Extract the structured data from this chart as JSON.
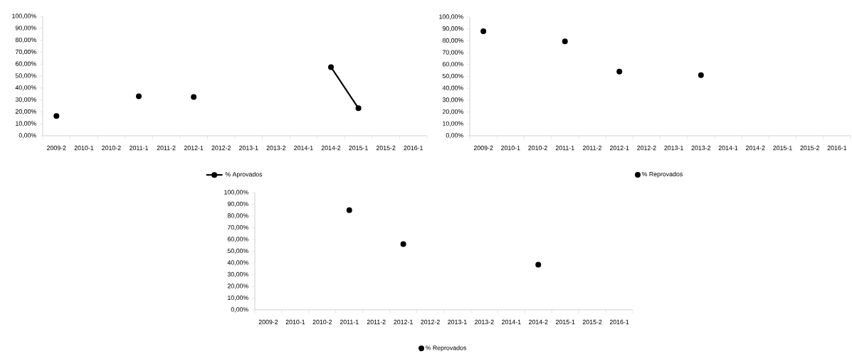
{
  "chart_data": [
    {
      "type": "line",
      "categories": [
        "2009-2",
        "2010-1",
        "2010-2",
        "2011-1",
        "2011-2",
        "2012-1",
        "2012-2",
        "2013-1",
        "2013-2",
        "2014-1",
        "2014-2",
        "2015-1",
        "2015-2",
        "2016-1"
      ],
      "series": [
        {
          "name": "% Aprovados",
          "color": "#000000",
          "values": [
            16.5,
            null,
            null,
            33,
            null,
            32.5,
            null,
            null,
            null,
            null,
            57.5,
            23,
            null,
            null
          ]
        }
      ],
      "ylim": [
        0,
        100
      ],
      "yticks": [
        {
          "value": 0,
          "label": "0,00%"
        },
        {
          "value": 10,
          "label": "10,00%"
        },
        {
          "value": 20,
          "label": "20,00%"
        },
        {
          "value": 30,
          "label": "30,00%"
        },
        {
          "value": 40,
          "label": "40,00%"
        },
        {
          "value": 50,
          "label": "50,00%"
        },
        {
          "value": 60,
          "label": "60,00%"
        },
        {
          "value": 70,
          "label": "70,00%"
        },
        {
          "value": 80,
          "label": "80,00%"
        },
        {
          "value": 90,
          "label": "90,00%"
        },
        {
          "value": 100,
          "label": "100,00%"
        }
      ],
      "legend": "bottom",
      "marker": "circle",
      "line_style": "solid"
    },
    {
      "type": "line",
      "categories": [
        "2009-2",
        "2010-1",
        "2010-2",
        "2011-1",
        "2011-2",
        "2012-1",
        "2012-2",
        "2013-1",
        "2013-2",
        "2014-1",
        "2014-2",
        "2015-1",
        "2015-2",
        "2016-1"
      ],
      "series": [
        {
          "name": "% Reprovados",
          "type": "scatter",
          "color": "#000000",
          "values": [
            88,
            null,
            null,
            79.5,
            null,
            54,
            null,
            null,
            51,
            null,
            null,
            null,
            null,
            null
          ]
        }
      ],
      "ylim": [
        0,
        100
      ],
      "yticks": [
        {
          "value": 0,
          "label": "0,00%"
        },
        {
          "value": 10,
          "label": "10,00%"
        },
        {
          "value": 20,
          "label": "20,00%"
        },
        {
          "value": 30,
          "label": "30,00%"
        },
        {
          "value": 40,
          "label": "40,00%"
        },
        {
          "value": 50,
          "label": "50,00%"
        },
        {
          "value": 60,
          "label": "60,00%"
        },
        {
          "value": 70,
          "label": "70,00%"
        },
        {
          "value": 80,
          "label": "80,00%"
        },
        {
          "value": 90,
          "label": "90,00%"
        },
        {
          "value": 100,
          "label": "100,00%"
        }
      ],
      "legend": "bottom",
      "marker": "circle",
      "line_style": "solid"
    },
    {
      "type": "line",
      "categories": [
        "2009-2",
        "2010-1",
        "2010-2",
        "2011-1",
        "2011-2",
        "2012-1",
        "2012-2",
        "2013-1",
        "2013-2",
        "2014-1",
        "2014-2",
        "2015-1",
        "2015-2",
        "2016-1"
      ],
      "series": [
        {
          "name": "% Reprovados",
          "type": "scatter",
          "color": "#000000",
          "values": [
            null,
            null,
            null,
            85,
            null,
            56,
            null,
            null,
            null,
            null,
            38.5,
            null,
            null,
            null
          ]
        }
      ],
      "ylim": [
        0,
        100
      ],
      "yticks": [
        {
          "value": 0,
          "label": "0,00%"
        },
        {
          "value": 10,
          "label": "10,00%"
        },
        {
          "value": 20,
          "label": "20,00%"
        },
        {
          "value": 30,
          "label": "30,00%"
        },
        {
          "value": 40,
          "label": "40,00%"
        },
        {
          "value": 50,
          "label": "50,00%"
        },
        {
          "value": 60,
          "label": "60,00%"
        },
        {
          "value": 70,
          "label": "70,00%"
        },
        {
          "value": 80,
          "label": "80,00%"
        },
        {
          "value": 90,
          "label": "90,00%"
        },
        {
          "value": 100,
          "label": "100,00%"
        }
      ],
      "legend": "bottom",
      "marker": "circle",
      "line_style": "solid"
    }
  ]
}
